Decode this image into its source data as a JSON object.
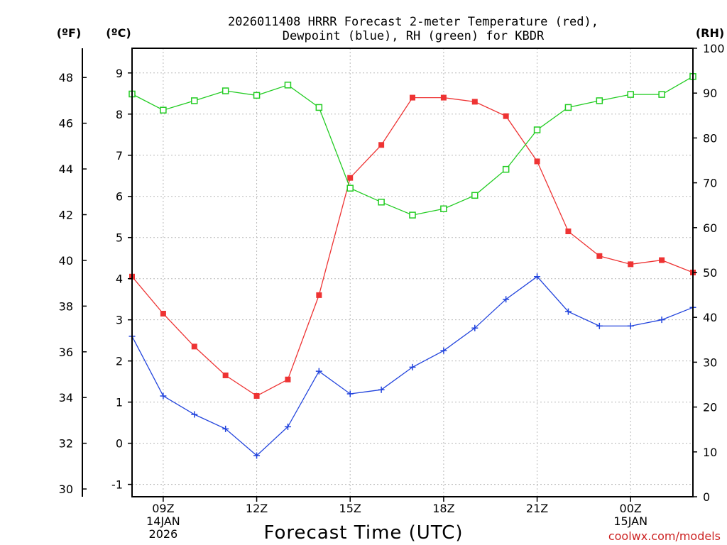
{
  "chart_data": {
    "type": "line",
    "title_line1": "2026011408 HRRR Forecast 2-meter Temperature (red),",
    "title_line2": "Dewpoint (blue), RH (green) for KBDR",
    "xlabel": "Forecast Time (UTC)",
    "credit": "coolwx.com/models",
    "unit_f": "(ºF)",
    "unit_c": "(ºC)",
    "unit_rh": "(RH)",
    "hours": [
      8,
      9,
      10,
      11,
      12,
      13,
      14,
      15,
      16,
      17,
      18,
      19,
      20,
      21,
      22,
      23,
      24,
      25,
      26
    ],
    "x_ticks": [
      {
        "hour": 9,
        "lines": [
          "09Z",
          "14JAN",
          "2026"
        ]
      },
      {
        "hour": 12,
        "lines": [
          "12Z"
        ]
      },
      {
        "hour": 15,
        "lines": [
          "15Z"
        ]
      },
      {
        "hour": 18,
        "lines": [
          "18Z"
        ]
      },
      {
        "hour": 21,
        "lines": [
          "21Z"
        ]
      },
      {
        "hour": 24,
        "lines": [
          "00Z",
          "15JAN"
        ]
      }
    ],
    "celsius_range": [
      -1.3,
      9.6
    ],
    "celsius_ticks": [
      "-1",
      "0",
      "1",
      "2",
      "3",
      "4",
      "5",
      "6",
      "7",
      "8",
      "9"
    ],
    "fahrenheit_ticks": [
      "30",
      "32",
      "34",
      "36",
      "38",
      "40",
      "42",
      "44",
      "46",
      "48"
    ],
    "rh_range": [
      0,
      100
    ],
    "rh_ticks": [
      "0",
      "10",
      "20",
      "30",
      "40",
      "50",
      "60",
      "70",
      "80",
      "90",
      "100"
    ],
    "series": [
      {
        "name": "Temperature",
        "unit": "C",
        "color": "#ee3333",
        "marker": "filled-square",
        "values": [
          4.05,
          3.15,
          2.35,
          1.65,
          1.15,
          1.55,
          3.6,
          6.45,
          7.25,
          8.4,
          8.4,
          8.3,
          7.95,
          6.85,
          5.15,
          4.55,
          4.35,
          4.45,
          4.15
        ]
      },
      {
        "name": "Dewpoint",
        "unit": "C",
        "color": "#2244dd",
        "marker": "plus",
        "values": [
          2.6,
          1.15,
          0.7,
          0.35,
          -0.3,
          0.4,
          1.75,
          1.2,
          1.3,
          1.85,
          2.25,
          2.8,
          3.5,
          4.05,
          3.2,
          2.85,
          2.85,
          3.0,
          3.3
        ]
      },
      {
        "name": "RH",
        "unit": "%",
        "color": "#22cc22",
        "marker": "open-square",
        "values": [
          89.8,
          86.2,
          88.3,
          90.5,
          89.5,
          91.8,
          86.8,
          68.8,
          65.7,
          62.8,
          64.2,
          67.2,
          73.0,
          81.8,
          86.8,
          88.3,
          89.7,
          89.7,
          93.7
        ]
      }
    ]
  }
}
